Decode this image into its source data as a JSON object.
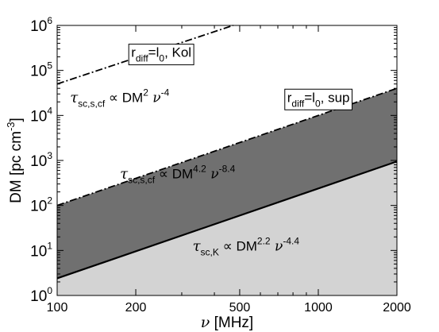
{
  "chart_data": {
    "type": "area",
    "xlabel_symbol": "ν",
    "xlabel_unit": " [MHz]",
    "ylabel": "DM [pc cm",
    "ylabel_exp": "-3",
    "ylabel_close": "]",
    "x_scale": "log",
    "y_scale": "log",
    "xlim": [
      100,
      2000
    ],
    "ylim": [
      1,
      1000000
    ],
    "x_ticks": [
      100,
      200,
      500,
      1000,
      2000
    ],
    "x_tick_labels": [
      "100",
      "200",
      "500",
      "1000",
      "2000"
    ],
    "y_ticks": [
      {
        "value": 1,
        "base": "10",
        "exp": "0"
      },
      {
        "value": 10,
        "base": "10",
        "exp": "1"
      },
      {
        "value": 100,
        "base": "10",
        "exp": "2"
      },
      {
        "value": 1000,
        "base": "10",
        "exp": "3"
      },
      {
        "value": 10000,
        "base": "10",
        "exp": "4"
      },
      {
        "value": 100000,
        "base": "10",
        "exp": "5"
      },
      {
        "value": 1000000,
        "base": "10",
        "exp": "6"
      }
    ],
    "grid": false,
    "lines": [
      {
        "label": "r_diff=l_0, Kol",
        "style": "dashdot",
        "color": "#000000",
        "x": [
          100,
          472
        ],
        "y": [
          50000,
          1000000
        ]
      },
      {
        "label": "r_diff=l_0, sup",
        "style": "dashdot",
        "color": "#000000",
        "x": [
          100,
          2000
        ],
        "y": [
          100,
          40000
        ]
      },
      {
        "label": "",
        "style": "solid",
        "color": "#000000",
        "x": [
          100,
          2000
        ],
        "y": [
          2.4,
          950
        ]
      }
    ],
    "regions": [
      {
        "label": "sup",
        "color": "#707070",
        "x": [
          100,
          2000
        ],
        "y_low": [
          2.4,
          950
        ],
        "y_high": [
          100,
          40000
        ]
      },
      {
        "label": "K",
        "color": "#d3d3d3",
        "x": [
          100,
          2000
        ],
        "y_low": [
          1,
          1
        ],
        "y_high": [
          2.4,
          950
        ]
      }
    ],
    "annotations": [
      {
        "tau": "τ",
        "sub": "sc,s,cf",
        "rel": " ∝ DM",
        "sup1": "2",
        "nu": " ν",
        "sup2": "-4",
        "x": 112,
        "y": 20000
      },
      {
        "tau": "τ",
        "sub": "sc,s,cf",
        "rel": " ∝ DM",
        "sup1": "4.2",
        "nu": " ν",
        "sup2": "-8.4",
        "x": 174,
        "y": 400
      },
      {
        "tau": "τ",
        "sub": "sc,K",
        "rel": " ∝ DM",
        "sup1": "2.2",
        "nu": " ν",
        "sup2": "-4.4",
        "x": 330,
        "y": 10
      }
    ],
    "boxes": [
      {
        "r": "r",
        "sub": "diff",
        "eq": "=l",
        "sub2": "0",
        "rest": ", Kol",
        "x": 192,
        "y": 200000
      },
      {
        "r": "r",
        "sub": "diff",
        "eq": "=l",
        "sub2": "0",
        "rest": ", sup",
        "x": 760,
        "y": 20000
      }
    ],
    "colors": {
      "dark_region": "#707070",
      "light_region": "#d3d3d3",
      "line": "#000000"
    }
  }
}
